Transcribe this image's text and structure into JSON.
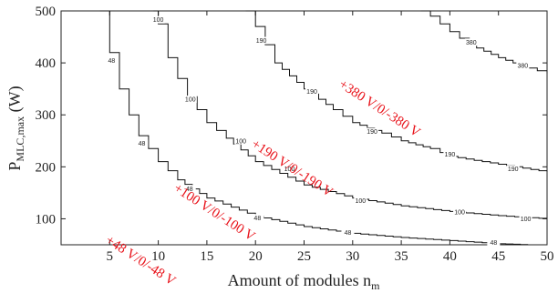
{
  "chart_data": {
    "type": "line",
    "xlabel_main": "Amount of modules n",
    "xlabel_sub": "m",
    "ylabel_main": "P",
    "ylabel_sub": "MLC,max",
    "ylabel_unit": " (W)",
    "xlim": [
      0,
      50
    ],
    "ylim": [
      50,
      500
    ],
    "x_ticks": [
      5,
      10,
      15,
      20,
      25,
      30,
      35,
      40,
      45,
      50
    ],
    "y_ticks": [
      100,
      200,
      300,
      400,
      500
    ],
    "line_color": "#111111",
    "annotation_color": "#e8121a",
    "grid": false,
    "series": [
      {
        "name": "48",
        "x": [
          4,
          5,
          6,
          7,
          8,
          10,
          12,
          15,
          20,
          25,
          30,
          35,
          40,
          45,
          48
        ],
        "y": [
          500,
          420,
          350,
          300,
          260,
          210,
          175,
          140,
          105,
          85,
          72,
          64,
          58,
          52,
          50
        ],
        "labels": [
          {
            "text": "48",
            "x": 5.2,
            "y": 405
          },
          {
            "text": "48",
            "x": 8.3,
            "y": 245
          },
          {
            "text": "48",
            "x": 13.2,
            "y": 158
          },
          {
            "text": "48",
            "x": 20.2,
            "y": 102
          },
          {
            "text": "48",
            "x": 29.5,
            "y": 74
          },
          {
            "text": "48",
            "x": 44.5,
            "y": 54
          }
        ]
      },
      {
        "name": "100",
        "x": [
          9.5,
          10,
          11,
          12,
          13,
          15,
          17,
          20,
          25,
          30,
          35,
          40,
          45,
          50
        ],
        "y": [
          500,
          475,
          410,
          370,
          335,
          285,
          255,
          210,
          165,
          140,
          125,
          114,
          106,
          100
        ],
        "labels": [
          {
            "text": "100",
            "x": 10.0,
            "y": 483
          },
          {
            "text": "100",
            "x": 13.3,
            "y": 330
          },
          {
            "text": "100",
            "x": 18.5,
            "y": 250
          },
          {
            "text": "100",
            "x": 23.5,
            "y": 196
          },
          {
            "text": "100",
            "x": 30.8,
            "y": 135
          },
          {
            "text": "100",
            "x": 41.0,
            "y": 113
          },
          {
            "text": "100",
            "x": 47.8,
            "y": 100
          }
        ]
      },
      {
        "name": "190",
        "x": [
          19,
          20,
          22,
          25,
          28,
          30,
          33,
          35,
          38,
          40,
          45,
          50
        ],
        "y": [
          500,
          470,
          400,
          350,
          310,
          285,
          265,
          250,
          235,
          220,
          205,
          190
        ],
        "labels": [
          {
            "text": "190",
            "x": 20.6,
            "y": 443
          },
          {
            "text": "190",
            "x": 25.8,
            "y": 345
          },
          {
            "text": "190",
            "x": 32.0,
            "y": 268
          },
          {
            "text": "190",
            "x": 40.0,
            "y": 224
          },
          {
            "text": "190",
            "x": 46.5,
            "y": 196
          }
        ]
      },
      {
        "name": "380",
        "x": [
          37,
          38,
          40,
          42,
          45,
          48,
          50
        ],
        "y": [
          500,
          490,
          460,
          435,
          410,
          390,
          380
        ],
        "labels": [
          {
            "text": "380",
            "x": 42.2,
            "y": 440
          },
          {
            "text": "380",
            "x": 47.5,
            "y": 395
          }
        ]
      }
    ],
    "annotations": [
      {
        "text": "+48 V/0/-48 V",
        "x": 4.5,
        "y": 55
      },
      {
        "text": "+100 V/0/-100 V",
        "x": 11.5,
        "y": 155
      },
      {
        "text": "+190 V/0/-190 V",
        "x": 19.5,
        "y": 240
      },
      {
        "text": "+380 V/0/-380 V",
        "x": 28.5,
        "y": 355
      }
    ]
  }
}
